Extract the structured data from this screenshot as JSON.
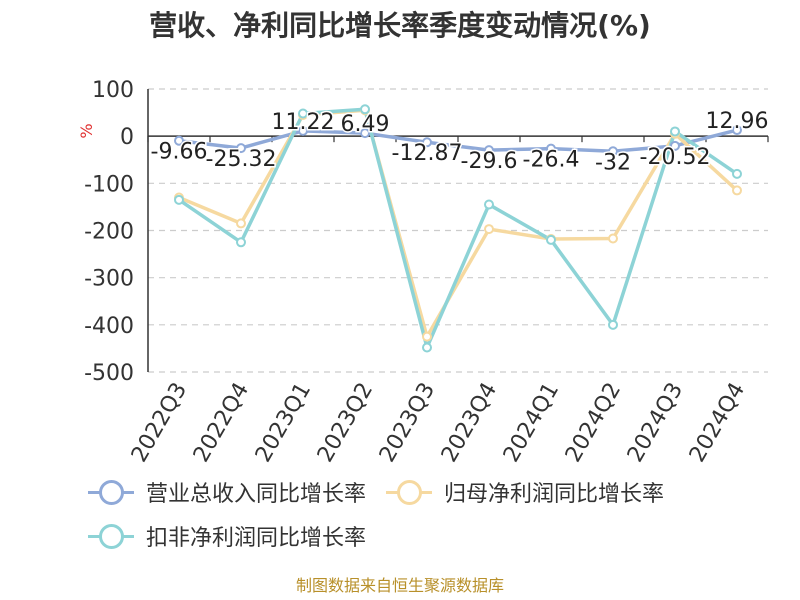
{
  "chart_data": {
    "type": "line",
    "title": "营收、净利同比增长率季度变动情况(%)",
    "ylabel": "%",
    "ylim": [
      -500,
      100
    ],
    "yticks": [
      100,
      0,
      -100,
      -200,
      -300,
      -400,
      -500
    ],
    "categories": [
      "2022Q3",
      "2022Q4",
      "2023Q1",
      "2023Q2",
      "2023Q3",
      "2023Q4",
      "2024Q1",
      "2024Q2",
      "2024Q3",
      "2024Q4"
    ],
    "series": [
      {
        "name": "营业总收入同比增长率",
        "color": "#8fa9d8",
        "values": [
          -9.66,
          -25.32,
          11.22,
          6.49,
          -12.87,
          -29.6,
          -26.4,
          -32,
          -20.52,
          12.96
        ],
        "labels": [
          "-9.66",
          "-25.32",
          "11.22",
          "6.49",
          "-12.87",
          "-29.6",
          "-26.4",
          "-32",
          "-20.52",
          "12.96"
        ]
      },
      {
        "name": "归母净利润同比增长率",
        "color": "#f6d9a0",
        "values": [
          -130,
          -185,
          45,
          55,
          -425,
          -197,
          -218,
          -217,
          5,
          -115
        ]
      },
      {
        "name": "扣非净利润同比增长率",
        "color": "#8dd3d6",
        "values": [
          -135,
          -225,
          48,
          57,
          -448,
          -145,
          -220,
          -400,
          10,
          -80
        ]
      }
    ],
    "grid": true,
    "legend_position": "bottom"
  },
  "source": "制图数据来自恒生聚源数据库"
}
